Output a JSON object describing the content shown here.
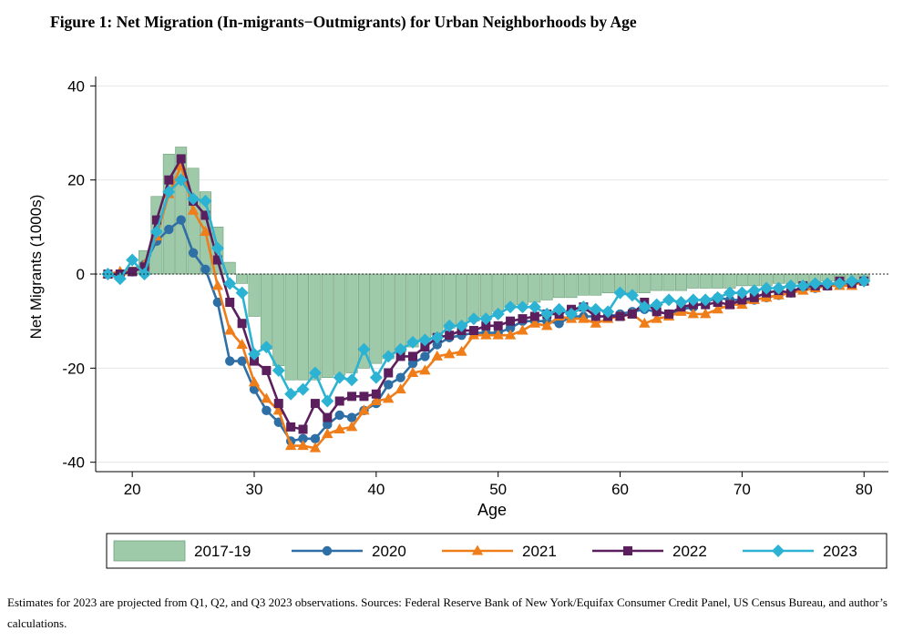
{
  "title": "Figure 1: Net Migration (In-migrants−Outmigrants) for Urban Neighborhoods by Age",
  "note": "Estimates for 2023 are projected from Q1, Q2, and Q3 2023 observations. Sources: Federal Reserve Bank of New York/Equifax Consumer Credit Panel, US Census Bureau, and author’s calculations.",
  "chart_data": {
    "type": "bar+line",
    "xlabel": "Age",
    "ylabel": "Net Migrants (1000s)",
    "xlim": [
      17,
      82
    ],
    "ylim": [
      -42,
      42
    ],
    "xticks": [
      20,
      30,
      40,
      50,
      60,
      70,
      80
    ],
    "yticks": [
      40,
      20,
      0,
      -20,
      -40
    ],
    "grid": true,
    "legend_position": "bottom",
    "x": [
      18,
      19,
      20,
      21,
      22,
      23,
      24,
      25,
      26,
      27,
      28,
      29,
      30,
      31,
      32,
      33,
      34,
      35,
      36,
      37,
      38,
      39,
      40,
      41,
      42,
      43,
      44,
      45,
      46,
      47,
      48,
      49,
      50,
      51,
      52,
      53,
      54,
      55,
      56,
      57,
      58,
      59,
      60,
      61,
      62,
      63,
      64,
      65,
      66,
      67,
      68,
      69,
      70,
      71,
      72,
      73,
      74,
      75,
      76,
      77,
      78,
      79,
      80
    ],
    "bars": {
      "name": "2017-19",
      "color": "#9fcaa9",
      "values": [
        0,
        0.5,
        1.5,
        5,
        16.5,
        25.5,
        27,
        22.5,
        17.5,
        10,
        2.5,
        -2,
        -9,
        -16,
        -19.5,
        -22.5,
        -22.5,
        -22.5,
        -22,
        -21.5,
        -21,
        -20,
        -19,
        -18,
        -16.5,
        -15.5,
        -14,
        -13,
        -11.5,
        -11,
        -10,
        -9,
        -8,
        -7,
        -6.5,
        -6,
        -5.5,
        -5,
        -5,
        -4.5,
        -4.5,
        -4,
        -4,
        -4,
        -4,
        -3.5,
        -3.5,
        -3.5,
        -3,
        -3,
        -3,
        -3,
        -2.5,
        -2.5,
        -2.5,
        -2,
        -2,
        -2,
        -2,
        -1.5,
        -1.5,
        -1.5,
        -1.5
      ]
    },
    "series": [
      {
        "name": "2020",
        "color": "#2e6fa6",
        "marker": "circle",
        "values": [
          0,
          0,
          0.5,
          2,
          7,
          9.5,
          11.5,
          4.5,
          1,
          -6,
          -18.5,
          -18.5,
          -24.5,
          -29,
          -31.5,
          -35.5,
          -35,
          -35,
          -32,
          -30,
          -30.5,
          -29,
          -27.5,
          -23.5,
          -22,
          -19,
          -17.5,
          -15,
          -13.5,
          -13,
          -12.5,
          -12.5,
          -12.5,
          -11.5,
          -10,
          -10,
          -10,
          -10.5,
          -9,
          -9,
          -9,
          -9,
          -8.5,
          -8,
          -7.5,
          -8,
          -8.5,
          -7.5,
          -7,
          -6,
          -5,
          -5.5,
          -5.5,
          -5.5,
          -5,
          -4.5,
          -4,
          -3,
          -3,
          -2.5,
          -2,
          -2,
          -1.5
        ]
      },
      {
        "name": "2021",
        "color": "#ef7d1a",
        "marker": "triangle",
        "values": [
          0,
          0.5,
          0.5,
          2,
          8,
          17,
          23,
          13.5,
          9,
          -2.5,
          -12,
          -15,
          -23,
          -26.5,
          -29,
          -36.5,
          -36.5,
          -37,
          -34,
          -33,
          -32.5,
          -29,
          -27,
          -26.5,
          -24.5,
          -21,
          -20.5,
          -17.5,
          -17,
          -16.5,
          -13,
          -13,
          -13,
          -13,
          -12,
          -10.5,
          -11,
          -9,
          -9.5,
          -9.5,
          -10.5,
          -9.5,
          -9,
          -8.5,
          -10.5,
          -9.5,
          -9,
          -8,
          -8.5,
          -8.5,
          -7.5,
          -6.5,
          -6.5,
          -5.5,
          -5,
          -4.5,
          -4,
          -3.5,
          -3,
          -2.5,
          -2.5,
          -2.5,
          -1.5
        ]
      },
      {
        "name": "2022",
        "color": "#5b1f5e",
        "marker": "square",
        "values": [
          0,
          0,
          0.5,
          1.5,
          11.5,
          20,
          24.5,
          15.5,
          12.5,
          3,
          -6,
          -10.5,
          -18.5,
          -20.5,
          -27.5,
          -32.5,
          -33,
          -27.5,
          -30.5,
          -27,
          -26,
          -26,
          -25.5,
          -21,
          -17.5,
          -17.5,
          -15.5,
          -13.5,
          -13,
          -12,
          -12,
          -11,
          -11,
          -10,
          -9.5,
          -9,
          -8.5,
          -8.5,
          -7.5,
          -7,
          -9,
          -9,
          -9,
          -8.5,
          -6,
          -8,
          -8.5,
          -7,
          -6.5,
          -6.5,
          -6,
          -6.5,
          -5.5,
          -5,
          -4,
          -3.5,
          -4,
          -2.5,
          -2.5,
          -2.5,
          -1.5,
          -2,
          -1.5
        ]
      },
      {
        "name": "2023",
        "color": "#2cb3d3",
        "marker": "diamond",
        "values": [
          0,
          -1,
          3,
          0,
          9,
          17.5,
          20,
          16,
          15.5,
          5.5,
          -2,
          -4,
          -17,
          -15.5,
          -20.5,
          -25.5,
          -24.5,
          -21,
          -27,
          -22,
          -22.5,
          -16,
          -22,
          -17.5,
          -16,
          -14.5,
          -14,
          -13.5,
          -11,
          -11,
          -9.5,
          -9.5,
          -8.5,
          -7,
          -7,
          -7,
          -8.5,
          -7.5,
          -8.5,
          -7,
          -7.5,
          -8,
          -4,
          -4.5,
          -7,
          -6.5,
          -5.5,
          -6,
          -5.5,
          -5.5,
          -5,
          -4,
          -4,
          -3.5,
          -3,
          -3,
          -2.5,
          -2.5,
          -2,
          -2,
          -2,
          -1.5,
          -1.5
        ]
      }
    ],
    "legend": [
      "2017-19",
      "2020",
      "2021",
      "2022",
      "2023"
    ]
  }
}
